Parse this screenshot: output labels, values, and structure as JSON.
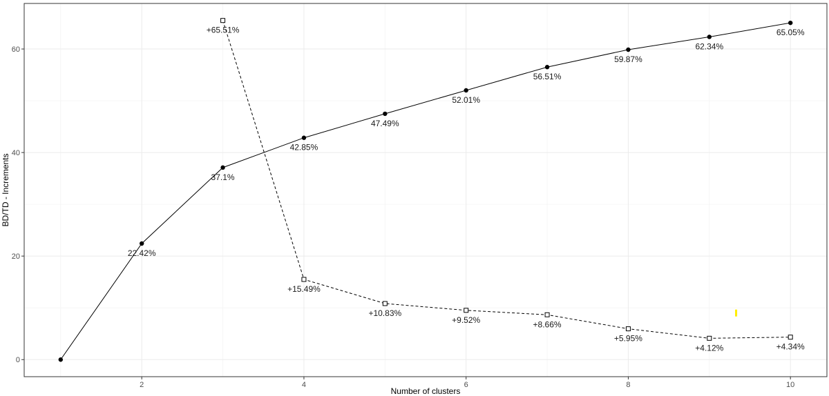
{
  "chart_data": {
    "type": "line",
    "xlabel": "Number of clusters",
    "ylabel": "BD/TD - Increments",
    "xlim": [
      0.55,
      10.45
    ],
    "ylim": [
      -3.3,
      68.8
    ],
    "x_ticks": [
      2,
      4,
      6,
      8,
      10
    ],
    "y_ticks": [
      0,
      20,
      40,
      60
    ],
    "grid": true,
    "series": [
      {
        "style": "solid-line-filled-circle",
        "x": [
          1,
          2,
          3,
          4,
          5,
          6,
          7,
          8,
          9,
          10
        ],
        "values": [
          0,
          22.42,
          37.1,
          42.85,
          47.49,
          52.01,
          56.51,
          59.87,
          62.34,
          65.05
        ],
        "labels": [
          "",
          "22.42%",
          "37.1%",
          "42.85%",
          "47.49%",
          "52.01%",
          "56.51%",
          "59.87%",
          "62.34%",
          "65.05%"
        ]
      },
      {
        "style": "dashed-line-open-square",
        "x": [
          3,
          4,
          5,
          6,
          7,
          8,
          9,
          10
        ],
        "values": [
          65.51,
          15.49,
          10.83,
          9.52,
          8.66,
          5.95,
          4.12,
          4.34
        ],
        "labels": [
          "+65.51%",
          "+15.49%",
          "+10.83%",
          "+9.52%",
          "+8.66%",
          "+5.95%",
          "+4.12%",
          "+4.34%"
        ]
      }
    ],
    "marker_annotation": {
      "x": 9.33,
      "y": 9,
      "color": "#ffee00"
    }
  }
}
